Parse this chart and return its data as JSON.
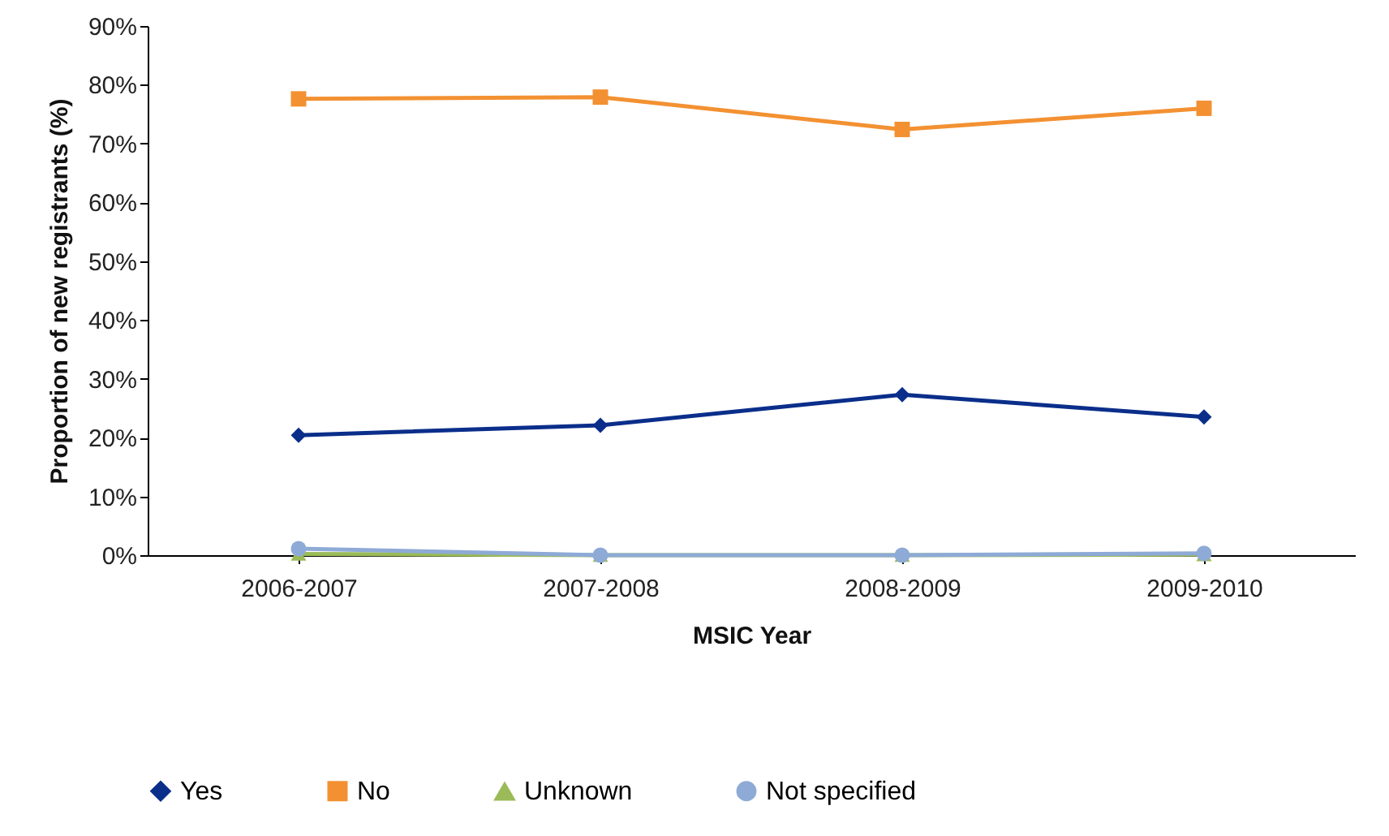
{
  "chart_data": {
    "type": "line",
    "xlabel": "MSIC Year",
    "ylabel": "Proportion of new registrants (%)",
    "categories": [
      "2006-2007",
      "2007-2008",
      "2008-2009",
      "2009-2010"
    ],
    "series": [
      {
        "name": "Yes",
        "color": "#0a2e8a",
        "marker": "diamond",
        "values": [
          20.4,
          22.1,
          27.3,
          23.5
        ]
      },
      {
        "name": "No",
        "color": "#f39132",
        "marker": "square",
        "values": [
          77.6,
          77.9,
          72.4,
          76.0
        ]
      },
      {
        "name": "Unknown",
        "color": "#9bbb59",
        "marker": "triangle",
        "values": [
          0.2,
          0,
          0,
          0.1
        ]
      },
      {
        "name": "Not specified",
        "color": "#8eaad6",
        "marker": "circle",
        "values": [
          1.1,
          0,
          0,
          0.3
        ]
      }
    ],
    "ylim": [
      0,
      90
    ],
    "yticks": [
      {
        "value": 0,
        "label": "0%"
      },
      {
        "value": 10,
        "label": "10%"
      },
      {
        "value": 20,
        "label": "20%"
      },
      {
        "value": 30,
        "label": "30%"
      },
      {
        "value": 40,
        "label": "40%"
      },
      {
        "value": 50,
        "label": "50%"
      },
      {
        "value": 60,
        "label": "60%"
      },
      {
        "value": 70,
        "label": "70%"
      },
      {
        "value": 80,
        "label": "80%"
      },
      {
        "value": 90,
        "label": "90%"
      }
    ],
    "grid": false,
    "legend": "bottom"
  }
}
